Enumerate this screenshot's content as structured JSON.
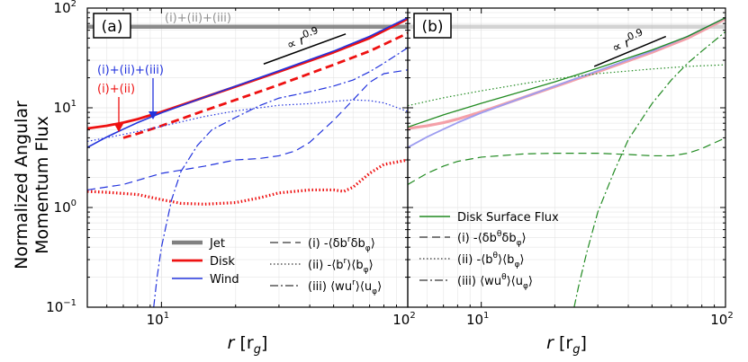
{
  "figure": {
    "ylabel_line1": "Normalized Angular",
    "ylabel_line2": "Momentum Flux"
  },
  "chart_data": [
    {
      "type": "line",
      "panel_label": "(a)",
      "xscale": "log",
      "yscale": "log",
      "xlim": [
        5,
        100
      ],
      "ylim": [
        0.1,
        100
      ],
      "xlabel": "r [r_g]",
      "xlabel_main": "r",
      "xlabel_unit": "[r",
      "xlabel_sub": "g",
      "xlabel_close": "]",
      "ylabel": "Normalized Angular Momentum Flux",
      "x_ticks": [
        {
          "v": 10,
          "b": "10",
          "e": "1"
        },
        {
          "v": 100,
          "b": "10",
          "e": "2"
        }
      ],
      "y_ticks": [
        {
          "v": 0.1,
          "b": "10",
          "e": "−1"
        },
        {
          "v": 1,
          "b": "10",
          "e": "0"
        },
        {
          "v": 10,
          "b": "10",
          "e": "1"
        },
        {
          "v": 100,
          "b": "10",
          "e": "2"
        }
      ],
      "annotations": {
        "total_label": "(i)+(ii)+(iii)",
        "wind_total_label": "(i)+(ii)+(iii)",
        "disk_partial_label": "(i)+(ii)",
        "powerlaw_prefix": "∝ r",
        "powerlaw_exp": "0.9"
      },
      "legend_components": [
        {
          "name": "Jet",
          "color": "#808080"
        },
        {
          "name": "Disk",
          "color": "#ee1111"
        },
        {
          "name": "Wind",
          "color": "#2233dd"
        }
      ],
      "legend_terms": [
        {
          "name": "(i) -⟨δb^r δb_φ⟩",
          "pre": "(i) -⟨δb",
          "sup": "r",
          "mid": "δb",
          "sub": "φ",
          "post": "⟩",
          "style": "dashed"
        },
        {
          "name": "(ii) -⟨b^r⟩⟨b_φ⟩",
          "pre": "(ii) -⟨b",
          "sup": "r",
          "mid": "⟩⟨b",
          "sub": "φ",
          "post": "⟩",
          "style": "dotted"
        },
        {
          "name": "(iii) ⟨wu^r⟩⟨u_φ⟩",
          "pre": "(iii) ⟨wu",
          "sup": "r",
          "mid": "⟩⟨u",
          "sub": "φ",
          "post": "⟩",
          "style": "dashdot"
        }
      ],
      "series": [
        {
          "name": "Jet total (i)+(ii)+(iii)",
          "color": "#808080",
          "style": "solid",
          "width": 4.5,
          "opacity": 0.9,
          "x": [
            5,
            100
          ],
          "y": [
            65,
            65
          ]
        },
        {
          "name": "Disk total (i)+(ii)",
          "color": "#ee1111",
          "style": "solid",
          "width": 2.8,
          "x": [
            5,
            6,
            7,
            8,
            9,
            10,
            15,
            20,
            30,
            50,
            70,
            100
          ],
          "y": [
            6.2,
            6.6,
            7.1,
            7.7,
            8.4,
            9.1,
            12.8,
            16.3,
            23,
            36,
            50,
            78
          ]
        },
        {
          "name": "Disk (i)",
          "color": "#ee1111",
          "style": "dashed",
          "width": 2.8,
          "x": [
            7,
            8,
            10,
            15,
            20,
            30,
            50,
            70,
            100
          ],
          "y": [
            5.0,
            5.5,
            6.6,
            9.4,
            12,
            17,
            27,
            37,
            56
          ]
        },
        {
          "name": "Disk (ii)",
          "color": "#ee1111",
          "style": "dotted",
          "width": 3.2,
          "x": [
            5,
            6,
            8,
            10,
            12,
            15,
            20,
            25,
            30,
            40,
            50,
            55,
            60,
            70,
            80,
            100
          ],
          "y": [
            1.45,
            1.42,
            1.35,
            1.2,
            1.1,
            1.08,
            1.12,
            1.25,
            1.4,
            1.5,
            1.5,
            1.45,
            1.6,
            2.2,
            2.7,
            3.0
          ]
        },
        {
          "name": "Wind total (i)+(ii)+(iii)",
          "color": "#2233dd",
          "style": "solid",
          "width": 1.6,
          "x": [
            5,
            6,
            7,
            8,
            9,
            10,
            15,
            20,
            30,
            50,
            70,
            100
          ],
          "y": [
            4.0,
            5.1,
            6.1,
            7.1,
            8.0,
            8.9,
            12.8,
            16.5,
            23.5,
            37,
            52,
            80
          ]
        },
        {
          "name": "Wind (i)",
          "color": "#2233dd",
          "style": "dashed",
          "width": 1.2,
          "x": [
            5,
            7,
            10,
            15,
            20,
            25,
            30,
            35,
            40,
            50,
            60,
            70,
            80,
            100
          ],
          "y": [
            1.5,
            1.7,
            2.2,
            2.6,
            3.0,
            3.1,
            3.3,
            3.7,
            4.5,
            7.5,
            12,
            18,
            22,
            24
          ]
        },
        {
          "name": "Wind (ii)",
          "color": "#2233dd",
          "style": "dotted",
          "width": 1.2,
          "x": [
            5,
            7,
            10,
            15,
            20,
            30,
            40,
            50,
            60,
            70,
            80,
            100
          ],
          "y": [
            4.6,
            5.4,
            6.5,
            8.2,
            9.3,
            10.6,
            11.0,
            11.6,
            12.0,
            11.8,
            11.2,
            9.2
          ]
        },
        {
          "name": "Wind (iii)",
          "color": "#2233dd",
          "style": "dashdot",
          "width": 1.2,
          "x": [
            9.3,
            9.6,
            10,
            11,
            12,
            14,
            16,
            20,
            25,
            30,
            40,
            50,
            60,
            70,
            80,
            100
          ],
          "y": [
            0.1,
            0.2,
            0.4,
            1.2,
            2.3,
            4.2,
            6.0,
            8.0,
            10.5,
            12.5,
            14.5,
            16.5,
            19,
            23,
            28,
            40
          ]
        }
      ],
      "powerlaw_guide": {
        "exponent": 0.9,
        "x": [
          26,
          56
        ],
        "y": [
          27.5,
          55
        ]
      }
    },
    {
      "type": "line",
      "panel_label": "(b)",
      "xscale": "log",
      "yscale": "log",
      "xlim": [
        5,
        100
      ],
      "ylim": [
        0.1,
        100
      ],
      "xlabel": "r [r_g]",
      "xlabel_main": "r",
      "xlabel_unit": "[r",
      "xlabel_sub": "g",
      "xlabel_close": "]",
      "x_ticks": [
        {
          "v": 10,
          "b": "10",
          "e": "1"
        },
        {
          "v": 100,
          "b": "10",
          "e": "2"
        }
      ],
      "annotations": {
        "powerlaw_prefix": "∝ r",
        "powerlaw_exp": "0.9"
      },
      "legend_components": [
        {
          "name": "Disk Surface Flux",
          "color": "#228b22"
        }
      ],
      "legend_terms": [
        {
          "name": "(i) -⟨δb^θ δb_φ⟩",
          "pre": "(i) -⟨δb",
          "sup": "θ",
          "mid": "δb",
          "sub": "φ",
          "post": "⟩",
          "style": "dashed"
        },
        {
          "name": "(ii) -⟨b^θ⟩⟨b_φ⟩",
          "pre": "(ii) -⟨b",
          "sup": "θ",
          "mid": "⟩⟨b",
          "sub": "φ",
          "post": "⟩",
          "style": "dotted"
        },
        {
          "name": "(iii) ⟨wu^θ⟩⟨u_φ⟩",
          "pre": "(iii) ⟨wu",
          "sup": "θ",
          "mid": "⟩⟨u",
          "sub": "φ",
          "post": "⟩",
          "style": "dashdot"
        }
      ],
      "series": [
        {
          "name": "Jet total (faded)",
          "color": "#c0c0c0",
          "style": "solid",
          "width": 4.5,
          "opacity": 0.7,
          "x": [
            5,
            100
          ],
          "y": [
            65,
            65
          ]
        },
        {
          "name": "Disk total (faded)",
          "color": "#f4a0a8",
          "style": "solid",
          "width": 3.2,
          "x": [
            5,
            6,
            7,
            8,
            9,
            10,
            15,
            20,
            30,
            50,
            70,
            100
          ],
          "y": [
            6.2,
            6.6,
            7.1,
            7.7,
            8.4,
            9.1,
            12.8,
            16.3,
            23,
            36,
            50,
            78
          ]
        },
        {
          "name": "Wind total (faded)",
          "color": "#9d9df0",
          "style": "solid",
          "width": 1.8,
          "x": [
            5,
            6,
            7,
            8,
            9,
            10,
            15,
            20,
            30,
            50,
            70,
            100
          ],
          "y": [
            4.0,
            5.1,
            6.1,
            7.1,
            8.0,
            8.9,
            12.8,
            16.5,
            23.5,
            37,
            52,
            80
          ]
        },
        {
          "name": "Disk Surface Flux total",
          "color": "#228b22",
          "style": "solid",
          "width": 1.3,
          "x": [
            5,
            7,
            10,
            15,
            20,
            30,
            50,
            70,
            100
          ],
          "y": [
            6.4,
            8.5,
            11.1,
            14.8,
            18.2,
            25,
            38,
            52,
            80
          ]
        },
        {
          "name": "Disk Surface Flux (i)",
          "color": "#228b22",
          "style": "dashed",
          "width": 1.2,
          "x": [
            5,
            6,
            7,
            8,
            10,
            15,
            20,
            30,
            40,
            50,
            60,
            70,
            80,
            100
          ],
          "y": [
            1.7,
            2.2,
            2.6,
            2.9,
            3.2,
            3.45,
            3.5,
            3.5,
            3.4,
            3.3,
            3.3,
            3.5,
            3.9,
            5.0
          ]
        },
        {
          "name": "Disk Surface Flux (ii)",
          "color": "#228b22",
          "style": "dotted",
          "width": 1.2,
          "x": [
            5,
            7,
            10,
            15,
            20,
            30,
            50,
            70,
            100
          ],
          "y": [
            10.5,
            12.6,
            14.8,
            17.5,
            19.5,
            22,
            24.5,
            26,
            27
          ]
        },
        {
          "name": "Disk Surface Flux (iii)",
          "color": "#228b22",
          "style": "dashdot",
          "width": 1.2,
          "x": [
            24,
            25,
            27,
            30,
            35,
            40,
            50,
            60,
            70,
            80,
            100
          ],
          "y": [
            0.1,
            0.16,
            0.35,
            0.9,
            2.3,
            4.8,
            11,
            19,
            28,
            37,
            58
          ]
        }
      ],
      "powerlaw_guide": {
        "exponent": 0.9,
        "x": [
          29,
          57
        ],
        "y": [
          26,
          52
        ]
      }
    }
  ]
}
